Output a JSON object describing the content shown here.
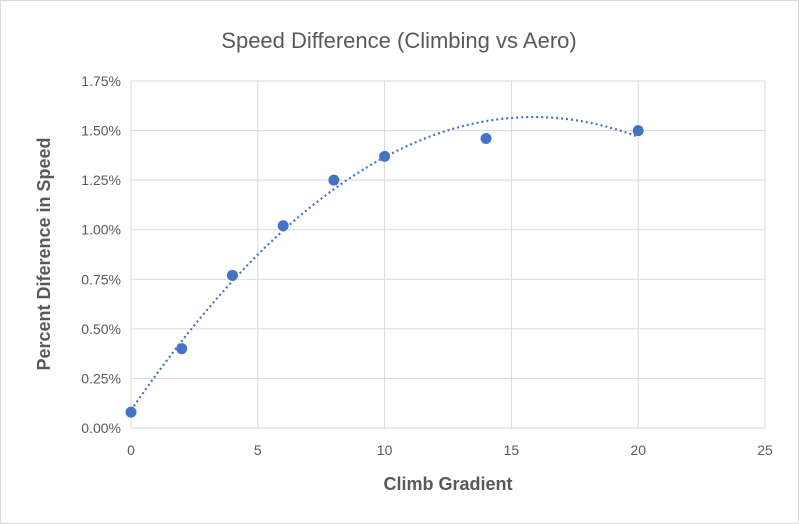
{
  "chart_data": {
    "type": "scatter",
    "title": "Speed Difference (Climbing vs Aero)",
    "xlabel": "Climb Gradient",
    "ylabel": "Percent Diference in Speed",
    "xlim": [
      0,
      25
    ],
    "ylim": [
      0,
      1.75
    ],
    "x_ticks": [
      "0",
      "5",
      "10",
      "15",
      "20",
      "25"
    ],
    "y_ticks": [
      "0.00%",
      "0.25%",
      "0.50%",
      "0.75%",
      "1.00%",
      "1.25%",
      "1.50%",
      "1.75%"
    ],
    "x_tick_values": [
      0,
      5,
      10,
      15,
      20,
      25
    ],
    "y_tick_values": [
      0,
      0.25,
      0.5,
      0.75,
      1.0,
      1.25,
      1.5,
      1.75
    ],
    "grid": true,
    "trendline": "polynomial, dotted",
    "series": [
      {
        "x": [
          0,
          2,
          4,
          6,
          8,
          10,
          14,
          20
        ],
        "y": [
          0.08,
          0.4,
          0.77,
          1.02,
          1.25,
          1.37,
          1.46,
          1.5
        ]
      }
    ],
    "color": "#4472c4"
  }
}
